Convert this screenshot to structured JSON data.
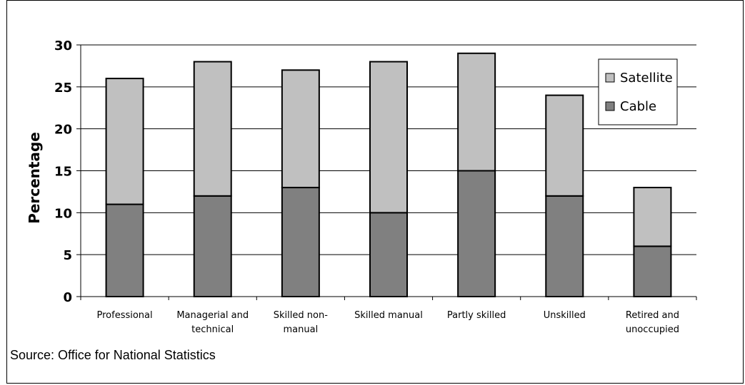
{
  "chart_data": {
    "type": "bar",
    "stacked": true,
    "categories": [
      [
        "Professional"
      ],
      [
        "Managerial and",
        "technical"
      ],
      [
        "Skilled non-",
        "manual"
      ],
      [
        "Skilled manual"
      ],
      [
        "Partly skilled"
      ],
      [
        "Unskilled"
      ],
      [
        "Retired and",
        "unoccupied"
      ]
    ],
    "series": [
      {
        "name": "Cable",
        "values": [
          11,
          12,
          13,
          10,
          15,
          12,
          6
        ],
        "color": "#808080"
      },
      {
        "name": "Satellite",
        "values": [
          15,
          16,
          14,
          18,
          14,
          12,
          7
        ],
        "color": "#c0c0c0"
      }
    ],
    "ylabel": "Percentage",
    "xlabel": "",
    "ylim": [
      0,
      30
    ],
    "yticks": [
      0,
      5,
      10,
      15,
      20,
      25,
      30
    ],
    "grid": true,
    "legend_position": "top-right",
    "legend_order": [
      "Satellite",
      "Cable"
    ]
  },
  "source": "Source: Office for National Statistics"
}
